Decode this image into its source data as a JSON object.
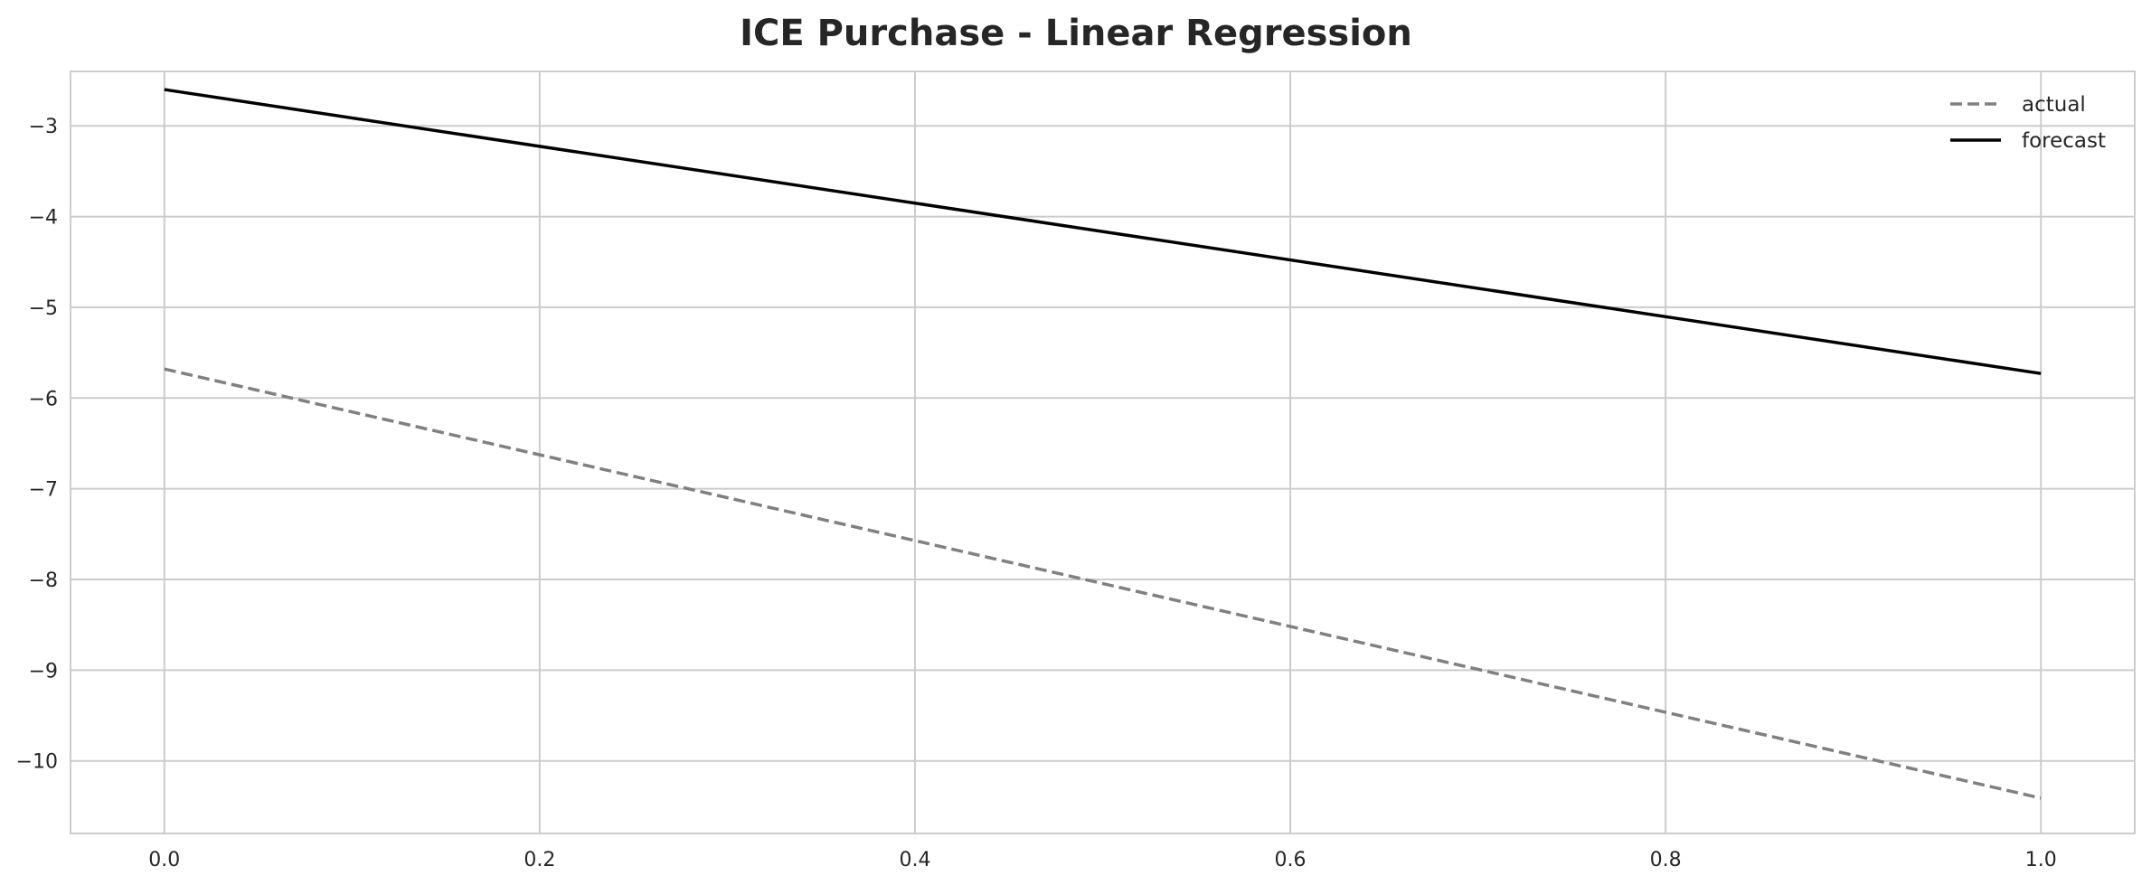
{
  "chart_data": {
    "type": "line",
    "title": "ICE Purchase - Linear Regression",
    "xlabel": "",
    "ylabel": "",
    "xlim": [
      -0.05,
      1.05
    ],
    "ylim": [
      -10.8,
      -2.4
    ],
    "xticks": [
      0.0,
      0.2,
      0.4,
      0.6,
      0.8,
      1.0
    ],
    "xtick_labels": [
      "0.0",
      "0.2",
      "0.4",
      "0.6",
      "0.8",
      "1.0"
    ],
    "yticks": [
      -3,
      -4,
      -5,
      -6,
      -7,
      -8,
      -9,
      -10
    ],
    "ytick_labels": [
      "−3",
      "−4",
      "−5",
      "−6",
      "−7",
      "−8",
      "−9",
      "−10"
    ],
    "grid": true,
    "legend": "top-right",
    "series": [
      {
        "name": "actual",
        "x": [
          0.0,
          1.0
        ],
        "values": [
          -5.68,
          -10.41
        ],
        "color": "#808080",
        "style": "dashed"
      },
      {
        "name": "forecast",
        "x": [
          0.0,
          1.0
        ],
        "values": [
          -2.6,
          -5.73
        ],
        "color": "#000000",
        "style": "solid"
      }
    ]
  }
}
